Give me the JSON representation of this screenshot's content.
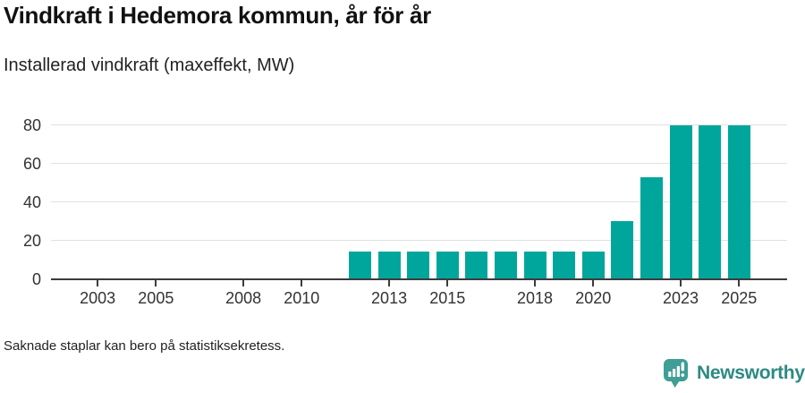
{
  "footnote": "Saknade staplar kan bero på statistiksekretess.",
  "brand": {
    "name": "Newsworthy",
    "icon": "newsworthy-speech-bubble-bar-chart-icon",
    "icon_color": "#3F9E95",
    "wordmark_color": "#2D8A83"
  },
  "chart_data": {
    "type": "bar",
    "title": "Vindkraft i Hedemora kommun, år för år",
    "subtitle": "Installerad vindkraft (maxeffekt, MW)",
    "xlabel": "",
    "ylabel": "",
    "x": [
      2012,
      2013,
      2014,
      2015,
      2016,
      2017,
      2018,
      2019,
      2020,
      2021,
      2022,
      2023,
      2024,
      2025
    ],
    "values": [
      14,
      14,
      14,
      14,
      14,
      14,
      14,
      14,
      14,
      30,
      53,
      80,
      80,
      80
    ],
    "x_ticks": [
      2003,
      2005,
      2008,
      2010,
      2013,
      2015,
      2018,
      2020,
      2023,
      2025
    ],
    "y_ticks": [
      0,
      20,
      40,
      60,
      80
    ],
    "xlim": [
      2001.4,
      2026.65
    ],
    "ylim": [
      0,
      80
    ],
    "grid": true,
    "legend_position": "none",
    "bar_color": "#00A69C",
    "gridline_color": "#E1E1E1",
    "axis_color": "#3C3C3C",
    "tick_label_color": "#333333"
  }
}
